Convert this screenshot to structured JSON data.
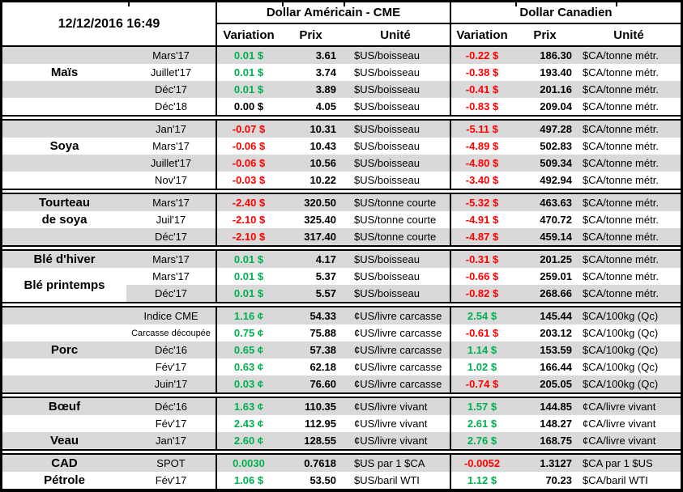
{
  "header": {
    "timestamp": "12/12/2016 16:49",
    "us_group": "Dollar Américain - CME",
    "ca_group": "Dollar Canadien",
    "columns": {
      "variation": "Variation",
      "prix": "Prix",
      "unite": "Unité"
    }
  },
  "colors": {
    "positive": "#00B050",
    "negative": "#FF0000",
    "stripe": "#D9D9D9"
  },
  "sections": [
    {
      "name": "mais",
      "labels": [
        {
          "text": "Maïs",
          "row": 1
        }
      ],
      "rows": [
        {
          "month": "Mars'17",
          "us_var": "0.01 $",
          "us_dir": "pos",
          "us_prix": "3.61",
          "us_unit": "$US/boisseau",
          "ca_var": "-0.22 $",
          "ca_dir": "neg",
          "ca_prix": "186.30",
          "ca_unit": "$CA/tonne métr."
        },
        {
          "month": "Juillet'17",
          "us_var": "0.01 $",
          "us_dir": "pos",
          "us_prix": "3.74",
          "us_unit": "$US/boisseau",
          "ca_var": "-0.38 $",
          "ca_dir": "neg",
          "ca_prix": "193.40",
          "ca_unit": "$CA/tonne métr."
        },
        {
          "month": "Déc'17",
          "us_var": "0.01 $",
          "us_dir": "pos",
          "us_prix": "3.89",
          "us_unit": "$US/boisseau",
          "ca_var": "-0.41 $",
          "ca_dir": "neg",
          "ca_prix": "201.16",
          "ca_unit": "$CA/tonne métr."
        },
        {
          "month": "Déc'18",
          "us_var": "0.00 $",
          "us_dir": "zero",
          "us_prix": "4.05",
          "us_unit": "$US/boisseau",
          "ca_var": "-0.83 $",
          "ca_dir": "neg",
          "ca_prix": "209.04",
          "ca_unit": "$CA/tonne métr."
        }
      ]
    },
    {
      "name": "soya",
      "labels": [
        {
          "text": "Soya",
          "row": 1
        }
      ],
      "rows": [
        {
          "month": "Jan'17",
          "us_var": "-0.07 $",
          "us_dir": "neg",
          "us_prix": "10.31",
          "us_unit": "$US/boisseau",
          "ca_var": "-5.11 $",
          "ca_dir": "neg",
          "ca_prix": "497.28",
          "ca_unit": "$CA/tonne métr."
        },
        {
          "month": "Mars'17",
          "us_var": "-0.06 $",
          "us_dir": "neg",
          "us_prix": "10.43",
          "us_unit": "$US/boisseau",
          "ca_var": "-4.89 $",
          "ca_dir": "neg",
          "ca_prix": "502.83",
          "ca_unit": "$CA/tonne métr."
        },
        {
          "month": "Juillet'17",
          "us_var": "-0.06 $",
          "us_dir": "neg",
          "us_prix": "10.56",
          "us_unit": "$US/boisseau",
          "ca_var": "-4.80 $",
          "ca_dir": "neg",
          "ca_prix": "509.34",
          "ca_unit": "$CA/tonne métr."
        },
        {
          "month": "Nov'17",
          "us_var": "-0.03 $",
          "us_dir": "neg",
          "us_prix": "10.22",
          "us_unit": "$US/boisseau",
          "ca_var": "-3.40 $",
          "ca_dir": "neg",
          "ca_prix": "492.94",
          "ca_unit": "$CA/tonne métr."
        }
      ]
    },
    {
      "name": "tourteau-de-soya",
      "labels": [
        {
          "text": "Tourteau",
          "row": 0
        },
        {
          "text": "de soya",
          "row": 1
        }
      ],
      "rows": [
        {
          "month": "Mars'17",
          "us_var": "-2.40 $",
          "us_dir": "neg",
          "us_prix": "320.50",
          "us_unit": "$US/tonne courte",
          "ca_var": "-5.32 $",
          "ca_dir": "neg",
          "ca_prix": "463.63",
          "ca_unit": "$CA/tonne métr."
        },
        {
          "month": "Juil'17",
          "us_var": "-2.10 $",
          "us_dir": "neg",
          "us_prix": "325.40",
          "us_unit": "$US/tonne courte",
          "ca_var": "-4.91 $",
          "ca_dir": "neg",
          "ca_prix": "470.72",
          "ca_unit": "$CA/tonne métr."
        },
        {
          "month": "Déc'17",
          "us_var": "-2.10 $",
          "us_dir": "neg",
          "us_prix": "317.40",
          "us_unit": "$US/tonne courte",
          "ca_var": "-4.87 $",
          "ca_dir": "neg",
          "ca_prix": "459.14",
          "ca_unit": "$CA/tonne métr."
        }
      ]
    },
    {
      "name": "ble",
      "labels": [
        {
          "text": "Blé d'hiver",
          "row": 0
        },
        {
          "text": "Blé printemps",
          "span": [
            1,
            2
          ]
        }
      ],
      "rows": [
        {
          "month": "Mars'17",
          "us_var": "0.01 $",
          "us_dir": "pos",
          "us_prix": "4.17",
          "us_unit": "$US/boisseau",
          "ca_var": "-0.31 $",
          "ca_dir": "neg",
          "ca_prix": "201.25",
          "ca_unit": "$CA/tonne métr."
        },
        {
          "month": "Mars'17",
          "us_var": "0.01 $",
          "us_dir": "pos",
          "us_prix": "5.37",
          "us_unit": "$US/boisseau",
          "ca_var": "-0.66 $",
          "ca_dir": "neg",
          "ca_prix": "259.01",
          "ca_unit": "$CA/tonne métr."
        },
        {
          "month": "Déc'17",
          "us_var": "0.01 $",
          "us_dir": "pos",
          "us_prix": "5.57",
          "us_unit": "$US/boisseau",
          "ca_var": "-0.82 $",
          "ca_dir": "neg",
          "ca_prix": "268.66",
          "ca_unit": "$CA/tonne métr.",
          "label_white": true
        }
      ]
    },
    {
      "name": "porc",
      "labels": [
        {
          "text": "Porc",
          "row": 2
        }
      ],
      "rows": [
        {
          "month": "Indice CME",
          "us_var": "1.16 ¢",
          "us_dir": "pos",
          "us_prix": "54.33",
          "us_unit": "¢US/livre carcasse",
          "ca_var": "2.54 $",
          "ca_dir": "pos",
          "ca_prix": "145.44",
          "ca_unit": "$CA/100kg (Qc)"
        },
        {
          "month": "Carcasse découpée",
          "small": true,
          "us_var": "0.75 ¢",
          "us_dir": "pos",
          "us_prix": "75.88",
          "us_unit": "¢US/livre carcasse",
          "ca_var": "-0.61 $",
          "ca_dir": "neg",
          "ca_prix": "203.12",
          "ca_unit": "$CA/100kg (Qc)"
        },
        {
          "month": "Déc'16",
          "us_var": "0.65 ¢",
          "us_dir": "pos",
          "us_prix": "57.38",
          "us_unit": "¢US/livre carcasse",
          "ca_var": "1.14 $",
          "ca_dir": "pos",
          "ca_prix": "153.59",
          "ca_unit": "$CA/100kg (Qc)"
        },
        {
          "month": "Fév'17",
          "us_var": "0.63 ¢",
          "us_dir": "pos",
          "us_prix": "62.18",
          "us_unit": "¢US/livre carcasse",
          "ca_var": "1.02 $",
          "ca_dir": "pos",
          "ca_prix": "166.44",
          "ca_unit": "$CA/100kg (Qc)"
        },
        {
          "month": "Juin'17",
          "us_var": "0.03 ¢",
          "us_dir": "pos",
          "us_prix": "76.60",
          "us_unit": "¢US/livre carcasse",
          "ca_var": "-0.74 $",
          "ca_dir": "neg",
          "ca_prix": "205.05",
          "ca_unit": "$CA/100kg (Qc)"
        }
      ]
    },
    {
      "name": "boeuf-veau",
      "labels": [
        {
          "text": "Bœuf",
          "row": 0
        },
        {
          "text": "Veau",
          "row": 2
        }
      ],
      "rows": [
        {
          "month": "Déc'16",
          "us_var": "1.63 ¢",
          "us_dir": "pos",
          "us_prix": "110.35",
          "us_unit": "¢US/livre vivant",
          "ca_var": "1.57 $",
          "ca_dir": "pos",
          "ca_prix": "144.85",
          "ca_unit": "¢CA/livre vivant"
        },
        {
          "month": "Fév'17",
          "us_var": "2.43 ¢",
          "us_dir": "pos",
          "us_prix": "112.95",
          "us_unit": "¢US/livre vivant",
          "ca_var": "2.61 $",
          "ca_dir": "pos",
          "ca_prix": "148.27",
          "ca_unit": "¢CA/livre vivant"
        },
        {
          "month": "Jan'17",
          "us_var": "2.60 ¢",
          "us_dir": "pos",
          "us_prix": "128.55",
          "us_unit": "¢US/livre vivant",
          "ca_var": "2.76 $",
          "ca_dir": "pos",
          "ca_prix": "168.75",
          "ca_unit": "¢CA/livre vivant"
        }
      ]
    },
    {
      "name": "cad-petrole",
      "labels": [
        {
          "text": "CAD",
          "row": 0
        },
        {
          "text": "Pétrole",
          "row": 1
        }
      ],
      "rows": [
        {
          "month": "SPOT",
          "us_var": "0.0030",
          "us_dir": "pos",
          "us_prix": "0.7618",
          "us_unit": "$US par 1 $CA",
          "ca_var": "-0.0052",
          "ca_dir": "neg",
          "ca_prix": "1.3127",
          "ca_unit": "$CA par 1 $US"
        },
        {
          "month": "Fév'17",
          "us_var": "1.06 $",
          "us_dir": "pos",
          "us_prix": "53.50",
          "us_unit": "$US/baril WTI",
          "ca_var": "1.12 $",
          "ca_dir": "pos",
          "ca_prix": "70.23",
          "ca_unit": "$CA/baril WTI"
        }
      ]
    }
  ]
}
